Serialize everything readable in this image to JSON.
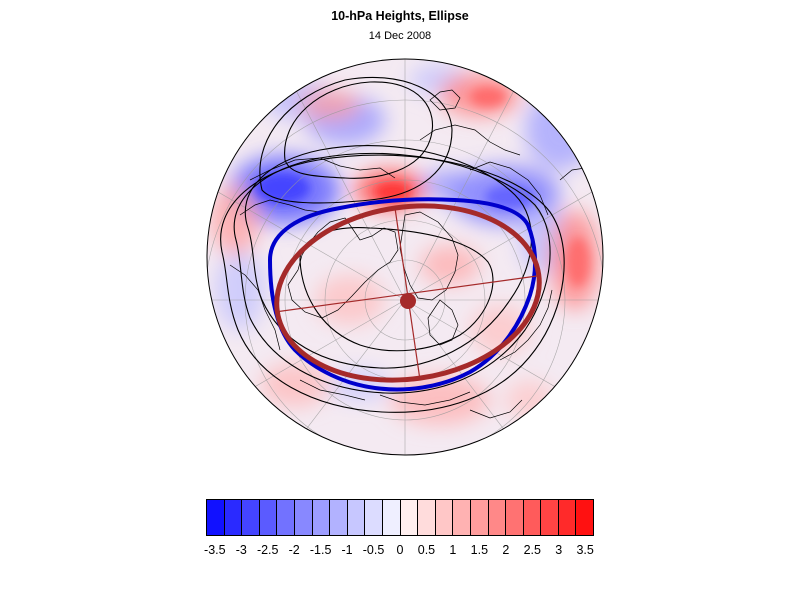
{
  "header": {
    "title": "10-hPa Heights, Ellipse",
    "subtitle": "14 Dec 2008"
  },
  "map": {
    "projection": "polar stereographic",
    "ellipse_color": "#a52a2a",
    "zero_contour_color": "#0000cc",
    "height_contour_color": "#000000",
    "coastline_color": "#000000"
  },
  "colorbar": {
    "colors": [
      "#1111ff",
      "#2a2aff",
      "#4444ff",
      "#5b5bff",
      "#7272ff",
      "#8888ff",
      "#9d9dff",
      "#b2b2ff",
      "#c7c7ff",
      "#dcdcff",
      "#efefff",
      "#ffefef",
      "#ffdcdc",
      "#ffc7c7",
      "#ffb2b2",
      "#ff9d9d",
      "#ff8888",
      "#ff7272",
      "#ff5b5b",
      "#ff4444",
      "#ff2a2a",
      "#ff1111"
    ],
    "labels": [
      "-3.5",
      "-3",
      "-2.5",
      "-2",
      "-1.5",
      "-1",
      "-0.5",
      "0",
      "0.5",
      "1",
      "1.5",
      "2",
      "2.5",
      "3",
      "3.5"
    ]
  }
}
